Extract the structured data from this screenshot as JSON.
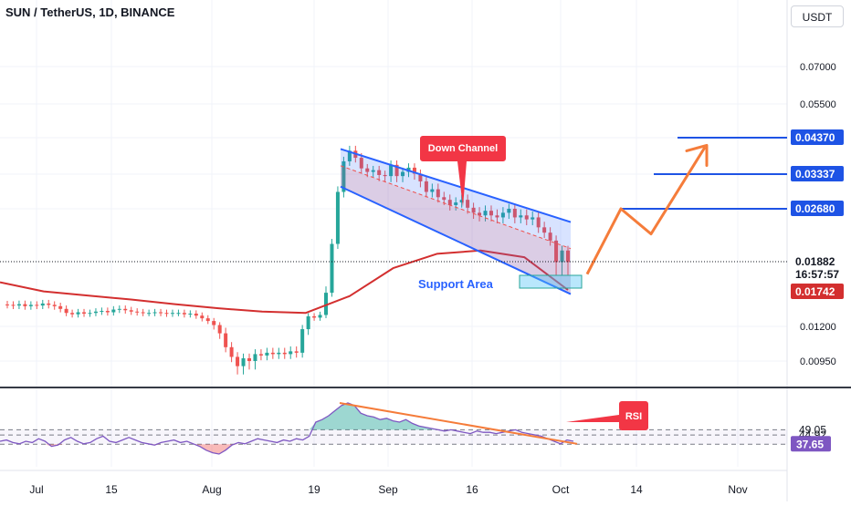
{
  "header": {
    "title": "SUN / TetherUS, 1D, BINANCE",
    "currency_button": "USDT"
  },
  "colors": {
    "up": "#26a69a",
    "down": "#ef5350",
    "ma": "#d32f2f",
    "channel": "#2962ff",
    "callout": "#f23645",
    "projection": "#f57c3a",
    "level": "#1e53e5",
    "rsi": "#7e57c2"
  },
  "chart_data": [
    {
      "type": "candlestick",
      "title": "SUN / TetherUS, 1D, BINANCE",
      "price_axis": {
        "labels": [
          "0.07000",
          "0.05500",
          "0.01200",
          "0.00950"
        ],
        "values": [
          0.07,
          0.055,
          0.012,
          0.0095
        ]
      },
      "time_axis": {
        "labels": [
          "Jul",
          "15",
          "Aug",
          "19",
          "Sep",
          "16",
          "Oct",
          "14",
          "Nov"
        ]
      },
      "price_tags": [
        {
          "text": "0.04370",
          "style": "level"
        },
        {
          "text": "0.03337",
          "style": "level"
        },
        {
          "text": "0.02680",
          "style": "level"
        },
        {
          "text": "0.01882",
          "style": "last"
        },
        {
          "text": "16:57:57",
          "style": "timer"
        },
        {
          "text": "0.01742",
          "style": "ma"
        }
      ],
      "target_levels": [
        0.0437,
        0.03337,
        0.0268
      ],
      "last_price": 0.01882,
      "ma_value": 0.01742,
      "candles_close": [
        0.0152,
        0.0151,
        0.0153,
        0.015,
        0.0152,
        0.0151,
        0.0154,
        0.0152,
        0.015,
        0.0146,
        0.014,
        0.0138,
        0.0141,
        0.0139,
        0.014,
        0.0142,
        0.0143,
        0.0141,
        0.0145,
        0.0146,
        0.0144,
        0.0142,
        0.0141,
        0.014,
        0.014,
        0.0141,
        0.014,
        0.0139,
        0.014,
        0.014,
        0.0138,
        0.0139,
        0.0136,
        0.0132,
        0.0128,
        0.0122,
        0.0115,
        0.0105,
        0.0098,
        0.0093,
        0.0097,
        0.0095,
        0.01,
        0.0099,
        0.0101,
        0.01,
        0.0101,
        0.01,
        0.0102,
        0.0101,
        0.0118,
        0.0135,
        0.0133,
        0.0137,
        0.017,
        0.0215,
        0.03,
        0.037,
        0.04,
        0.038,
        0.035,
        0.034,
        0.0345,
        0.0332,
        0.033,
        0.036,
        0.033,
        0.034,
        0.0352,
        0.0335,
        0.032,
        0.03,
        0.0305,
        0.029,
        0.0285,
        0.0275,
        0.028,
        0.0285,
        0.027,
        0.0262,
        0.0258,
        0.0265,
        0.0258,
        0.0255,
        0.0262,
        0.0268,
        0.0255,
        0.0258,
        0.0252,
        0.0255,
        0.024,
        0.0232,
        0.022,
        0.0188,
        0.0205,
        0.0188
      ],
      "ma_line": [
        0.0178,
        0.0172,
        0.0166,
        0.016,
        0.0153,
        0.0147,
        0.0142,
        0.014,
        0.0165,
        0.0185,
        0.02,
        0.0205,
        0.0195,
        0.01742
      ],
      "channel": {
        "upper": [
          0.0405,
          0.0248
        ],
        "lower": [
          0.031,
          0.0168
        ]
      },
      "projection_path": [
        0.0182,
        0.0268,
        0.023,
        0.041
      ],
      "annotations": [
        "Down Channel",
        "Support Area"
      ]
    },
    {
      "type": "line",
      "title": "RSI",
      "ylim": [
        20,
        80
      ],
      "levels": [
        49.05,
        44.92,
        37.65
      ],
      "level_labels": [
        "49.05",
        "44.92",
        "37.65"
      ],
      "series": [
        {
          "name": "RSI",
          "values": [
            40,
            41,
            39,
            38,
            40,
            39,
            42,
            40,
            36,
            37,
            41,
            43,
            40,
            38,
            39,
            42,
            44,
            40,
            39,
            41,
            43,
            41,
            39,
            38,
            37,
            39,
            40,
            41,
            39,
            40,
            38,
            36,
            33,
            31,
            30,
            33,
            37,
            39,
            38,
            40,
            42,
            41,
            40,
            39,
            41,
            40,
            42,
            41,
            44,
            55,
            57,
            60,
            64,
            68,
            70,
            68,
            62,
            60,
            59,
            57,
            58,
            56,
            55,
            57,
            54,
            52,
            51,
            50,
            49,
            48,
            49,
            48,
            47,
            46,
            48,
            47,
            47,
            46,
            47,
            48,
            49,
            47,
            46,
            45,
            44,
            42,
            40,
            38,
            41,
            40
          ]
        }
      ],
      "annotations": [
        "RSI"
      ]
    }
  ]
}
